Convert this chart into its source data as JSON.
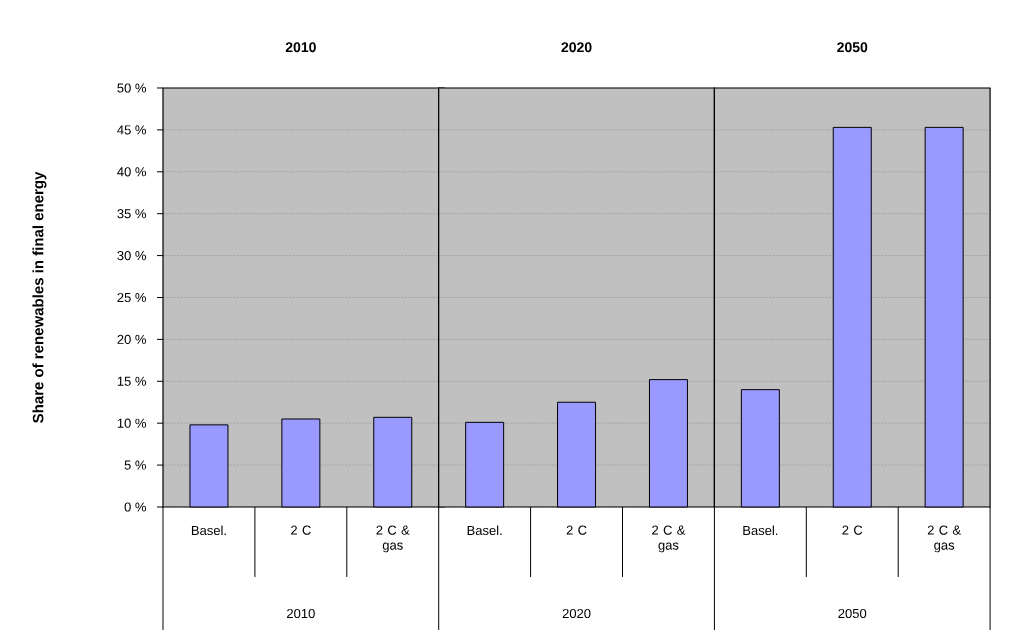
{
  "chart_data": [
    {
      "type": "bar",
      "title": "2010",
      "xlabel": "2010",
      "ylabel": "Share of renewables in final energy",
      "categories": [
        "Basel.",
        "2 C",
        "2 C & gas"
      ],
      "values": [
        9.8,
        10.5,
        10.7
      ],
      "color": "#9999ff",
      "ylim": [
        0,
        50
      ],
      "yticks": [
        {
          "value": 0,
          "label": "0 %"
        },
        {
          "value": 5,
          "label": "5 %"
        },
        {
          "value": 10,
          "label": "10 %"
        },
        {
          "value": 15,
          "label": "15 %"
        },
        {
          "value": 20,
          "label": "20 %"
        },
        {
          "value": 25,
          "label": "25 %"
        },
        {
          "value": 30,
          "label": "30 %"
        },
        {
          "value": 35,
          "label": "35 %"
        },
        {
          "value": 40,
          "label": "40 %"
        },
        {
          "value": 45,
          "label": "45 %"
        },
        {
          "value": 50,
          "label": "50 %"
        }
      ],
      "grid": "y"
    },
    {
      "type": "bar",
      "title": "2020",
      "xlabel": "2020",
      "categories": [
        "Basel.",
        "2 C",
        "2 C & gas"
      ],
      "values": [
        10.1,
        12.5,
        15.2
      ],
      "color": "#9999ff",
      "ylim": [
        0,
        50
      ],
      "yticks": [
        0,
        5,
        10,
        15,
        20,
        25,
        30,
        35,
        40,
        45,
        50
      ],
      "grid": "y",
      "tick_labels": "x"
    },
    {
      "type": "bar",
      "title": "2050",
      "xlabel": "2050",
      "categories": [
        "Basel.",
        "2 C",
        "2 C & gas"
      ],
      "values": [
        14.0,
        45.3,
        45.3
      ],
      "color": "#9999ff",
      "ylim": [
        0,
        50
      ],
      "yticks": [
        0,
        5,
        10,
        15,
        20,
        25,
        30,
        35,
        40,
        45,
        50
      ],
      "grid": "y",
      "tick_labels": "x"
    }
  ]
}
